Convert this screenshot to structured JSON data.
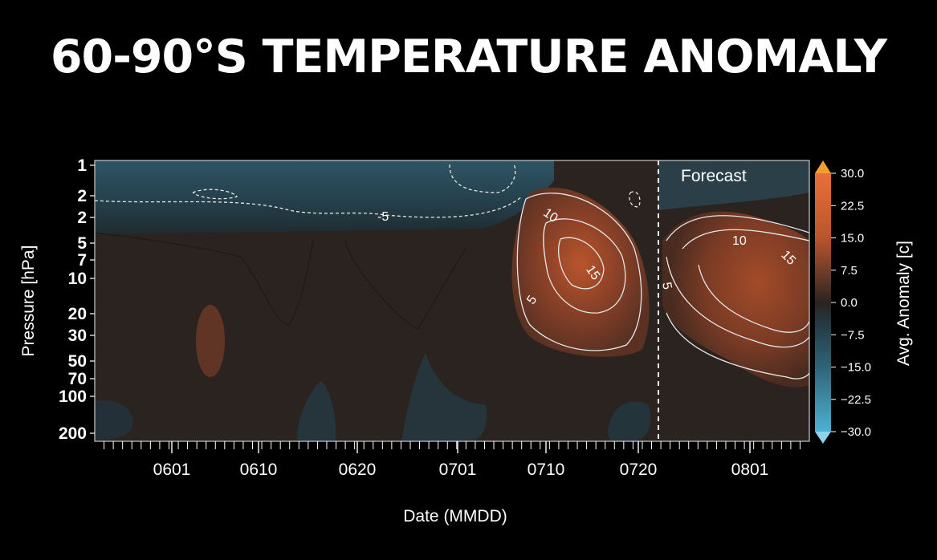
{
  "chart_data": {
    "type": "heatmap",
    "title": "60-90°S TEMPERATURE ANOMALY",
    "xlabel": "Date (MMDD)",
    "ylabel": "Pressure [hPa]",
    "colorbar_label": "Avg. Anomaly [c]",
    "x_ticks": [
      "0601",
      "0610",
      "0620",
      "0701",
      "0710",
      "0720",
      "0801"
    ],
    "y_ticks": [
      "1",
      "2",
      "2",
      "5",
      "7",
      "10",
      "20",
      "30",
      "50",
      "70",
      "100",
      "200"
    ],
    "colorbar_ticks": [
      "30.0",
      "22.5",
      "15.0",
      "7.5",
      "0.0",
      "−7.5",
      "−15.0",
      "−22.5",
      "−30.0"
    ],
    "clim": [
      -30,
      30
    ],
    "forecast_label": "Forecast",
    "contour_labels": [
      "-5",
      "10",
      "15",
      "5",
      "10",
      "15",
      "5"
    ],
    "colors": {
      "warm_max": "#e8703a",
      "neutral": "#2b2320",
      "cool_max": "#4fb0d3",
      "background": "#000000"
    }
  }
}
